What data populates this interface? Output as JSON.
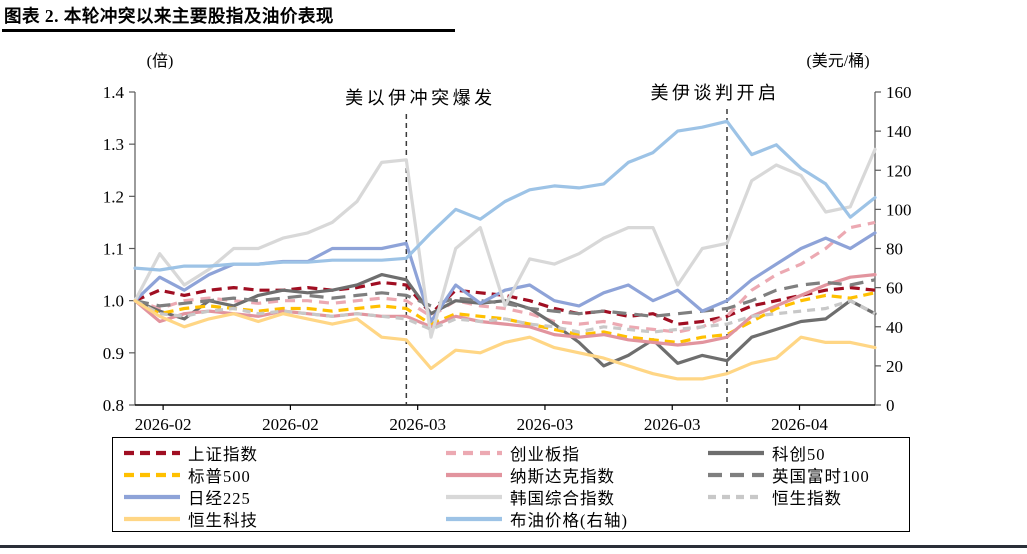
{
  "title": "图表 2. 本轮冲突以来主要股指及油价表现",
  "chart_data": {
    "type": "line",
    "left_axis": {
      "label": "(倍)",
      "min": 0.8,
      "max": 1.4,
      "ticks": [
        1.4,
        1.3,
        1.2,
        1.1,
        1.0,
        0.9,
        0.8
      ]
    },
    "right_axis": {
      "label": "(美元/桶)",
      "min": 0,
      "max": 160,
      "ticks": [
        160,
        140,
        120,
        100,
        80,
        60,
        40,
        20,
        0
      ]
    },
    "x_tick_labels": [
      "2026-02",
      "2026-02",
      "2026-03",
      "2026-03",
      "2026-03",
      "2026-04"
    ],
    "events": [
      {
        "label": "美以伊冲突爆发",
        "index": 11
      },
      {
        "label": "美伊谈判开启",
        "index": 24
      }
    ],
    "series": [
      {
        "name": "上证指数",
        "axis": "left",
        "color": "#A00E22",
        "line_style": "dashed",
        "dash": "10 6",
        "values": [
          1.0,
          1.02,
          1.01,
          1.02,
          1.025,
          1.02,
          1.02,
          1.025,
          1.02,
          1.025,
          1.035,
          1.03,
          0.975,
          1.02,
          1.015,
          1.01,
          1.0,
          0.985,
          0.975,
          0.98,
          0.97,
          0.975,
          0.955,
          0.96,
          0.97,
          0.99,
          1.0,
          1.01,
          1.02,
          1.025,
          1.02
        ]
      },
      {
        "name": "创业板指",
        "axis": "left",
        "color": "#ECA9B2",
        "line_style": "dashed",
        "dash": "10 7",
        "values": [
          1.0,
          0.985,
          1.0,
          1.005,
          1.0,
          0.995,
          1.0,
          1.0,
          0.995,
          1.0,
          1.005,
          1.0,
          0.97,
          1.0,
          0.99,
          0.985,
          0.975,
          0.96,
          0.955,
          0.96,
          0.95,
          0.945,
          0.94,
          0.95,
          0.97,
          1.02,
          1.05,
          1.07,
          1.1,
          1.14,
          1.15
        ]
      },
      {
        "name": "科创50",
        "axis": "left",
        "color": "#6E6E6E",
        "line_style": "solid",
        "dash": null,
        "values": [
          1.0,
          0.98,
          0.965,
          1.0,
          0.99,
          1.01,
          1.02,
          1.015,
          1.02,
          1.03,
          1.05,
          1.04,
          0.975,
          1.0,
          0.995,
          1.0,
          0.985,
          0.955,
          0.92,
          0.875,
          0.895,
          0.925,
          0.88,
          0.895,
          0.885,
          0.93,
          0.945,
          0.96,
          0.965,
          1.0,
          0.975
        ]
      },
      {
        "name": "标普500",
        "axis": "left",
        "color": "#FFC000",
        "line_style": "dashed",
        "dash": "10 6",
        "values": [
          1.0,
          0.975,
          0.985,
          0.99,
          0.985,
          0.98,
          0.985,
          0.985,
          0.98,
          0.985,
          0.99,
          0.985,
          0.955,
          0.975,
          0.97,
          0.965,
          0.955,
          0.945,
          0.935,
          0.94,
          0.93,
          0.925,
          0.92,
          0.93,
          0.935,
          0.96,
          0.985,
          1.0,
          1.01,
          1.005,
          1.015
        ]
      },
      {
        "name": "纳斯达克指数",
        "axis": "left",
        "color": "#E2949E",
        "line_style": "solid",
        "dash": null,
        "values": [
          1.0,
          0.96,
          0.975,
          0.98,
          0.975,
          0.97,
          0.98,
          0.975,
          0.97,
          0.975,
          0.97,
          0.97,
          0.95,
          0.97,
          0.96,
          0.955,
          0.95,
          0.935,
          0.93,
          0.935,
          0.925,
          0.92,
          0.915,
          0.92,
          0.93,
          0.97,
          0.99,
          1.01,
          1.03,
          1.045,
          1.05
        ]
      },
      {
        "name": "英国富时100",
        "axis": "left",
        "color": "#7F7F7F",
        "line_style": "dashed",
        "dash": "14 8",
        "values": [
          1.0,
          0.99,
          0.995,
          1.0,
          1.005,
          1.0,
          1.005,
          1.01,
          1.005,
          1.01,
          1.015,
          1.01,
          0.99,
          1.005,
          1.0,
          0.995,
          0.985,
          0.98,
          0.975,
          0.98,
          0.975,
          0.97,
          0.975,
          0.98,
          0.985,
          1.0,
          1.02,
          1.03,
          1.035,
          1.03,
          1.04
        ]
      },
      {
        "name": "日经225",
        "axis": "left",
        "color": "#8EA3D8",
        "line_style": "solid",
        "dash": null,
        "values": [
          1.0,
          1.045,
          1.02,
          1.05,
          1.07,
          1.07,
          1.075,
          1.075,
          1.1,
          1.1,
          1.1,
          1.11,
          0.96,
          1.03,
          0.995,
          1.02,
          1.03,
          1.0,
          0.99,
          1.015,
          1.03,
          1.0,
          1.02,
          0.98,
          1.0,
          1.04,
          1.07,
          1.1,
          1.12,
          1.1,
          1.13
        ]
      },
      {
        "name": "韩国综合指数",
        "axis": "left",
        "color": "#D8D8D8",
        "line_style": "solid",
        "dash": null,
        "values": [
          1.0,
          1.09,
          1.03,
          1.06,
          1.1,
          1.1,
          1.12,
          1.13,
          1.15,
          1.19,
          1.265,
          1.27,
          0.93,
          1.1,
          1.14,
          0.99,
          1.08,
          1.07,
          1.09,
          1.12,
          1.14,
          1.14,
          1.03,
          1.1,
          1.11,
          1.23,
          1.26,
          1.24,
          1.17,
          1.18,
          1.29
        ]
      },
      {
        "name": "恒生指数",
        "axis": "left",
        "color": "#C8C8C8",
        "line_style": "dashed",
        "dash": "8 6",
        "values": [
          1.0,
          0.975,
          0.97,
          0.98,
          0.985,
          0.975,
          0.98,
          0.975,
          0.97,
          0.975,
          0.97,
          0.965,
          0.945,
          0.965,
          0.96,
          0.965,
          0.955,
          0.95,
          0.94,
          0.95,
          0.945,
          0.94,
          0.945,
          0.95,
          0.955,
          0.97,
          0.975,
          0.98,
          0.985,
          1.0,
          0.975
        ]
      },
      {
        "name": "恒生科技",
        "axis": "left",
        "color": "#FFD685",
        "line_style": "solid",
        "dash": null,
        "values": [
          1.0,
          0.97,
          0.95,
          0.965,
          0.975,
          0.96,
          0.975,
          0.965,
          0.955,
          0.965,
          0.93,
          0.925,
          0.87,
          0.905,
          0.9,
          0.92,
          0.93,
          0.91,
          0.9,
          0.89,
          0.875,
          0.86,
          0.85,
          0.85,
          0.86,
          0.88,
          0.89,
          0.93,
          0.92,
          0.92,
          0.91
        ]
      },
      {
        "name": "布油价格(右轴)",
        "axis": "right",
        "color": "#9DC3E6",
        "line_style": "solid",
        "dash": null,
        "values": [
          70,
          69,
          71,
          71,
          72,
          72,
          73,
          73,
          74,
          74,
          74,
          75,
          88,
          100,
          95,
          104,
          110,
          112,
          111,
          113,
          124,
          129,
          140,
          142,
          145,
          128,
          133,
          121,
          113,
          96,
          106
        ]
      }
    ]
  }
}
